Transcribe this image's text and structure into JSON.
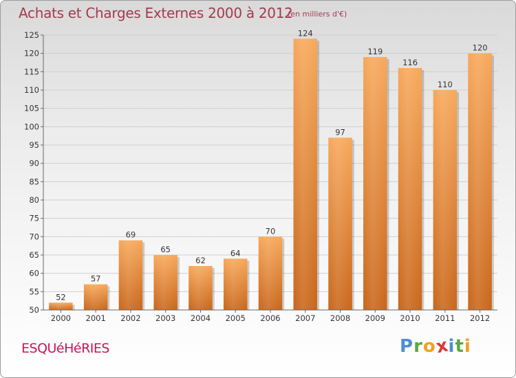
{
  "chart_data": {
    "type": "bar",
    "title": "Achats et Charges Externes 2000 à 2012",
    "subtitle": "(en milliers d'€)",
    "categories": [
      "2000",
      "2001",
      "2002",
      "2003",
      "2004",
      "2005",
      "2006",
      "2007",
      "2008",
      "2009",
      "2010",
      "2011",
      "2012"
    ],
    "values": [
      52,
      57,
      69,
      65,
      62,
      64,
      70,
      124,
      97,
      119,
      116,
      110,
      120
    ],
    "ylim": [
      50,
      125
    ],
    "yticks": [
      50,
      55,
      60,
      65,
      70,
      75,
      80,
      85,
      90,
      95,
      100,
      105,
      110,
      115,
      120,
      125
    ],
    "grid": true,
    "bar_color": "#e8862e",
    "legend": "none"
  },
  "footer": {
    "commune": "ESQUéHéRIES",
    "brand_letters": [
      {
        "ch": "P",
        "color": "#4a8fd6"
      },
      {
        "ch": "r",
        "color": "#5aaa3c"
      },
      {
        "ch": "o",
        "color": "#f2a020"
      },
      {
        "ch": "x",
        "color": "#d83a3a"
      },
      {
        "ch": "i",
        "color": "#4a8fd6"
      },
      {
        "ch": "t",
        "color": "#5aaa3c"
      },
      {
        "ch": "i",
        "color": "#f2a020"
      }
    ]
  }
}
